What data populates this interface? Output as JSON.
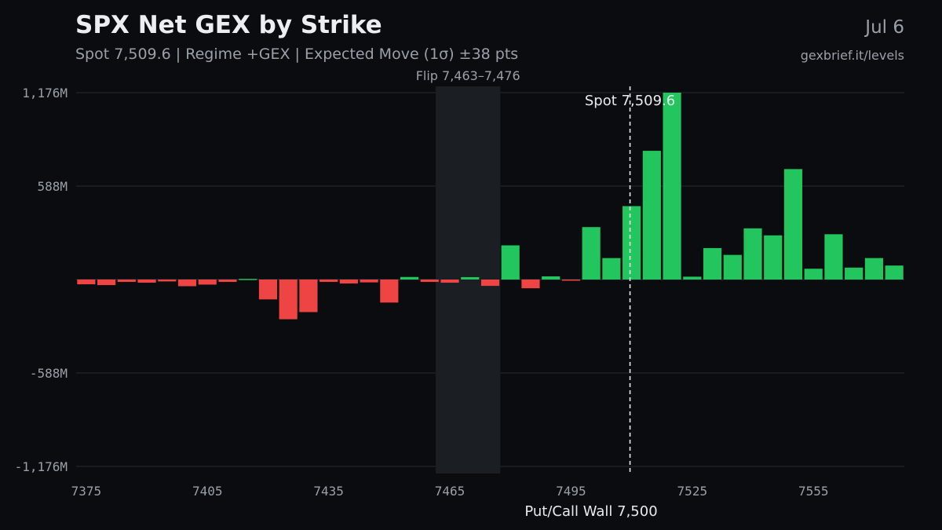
{
  "header": {
    "title": "SPX Net GEX by Strike",
    "subtitle": "Spot 7,509.6 | Regime +GEX | Expected Move (1σ) ±38 pts",
    "date": "Jul 6",
    "url": "gexbrief.it/levels"
  },
  "colors": {
    "background": "#0b0c0f",
    "positive": "#22c55e",
    "negative": "#ef4444",
    "grid": "#262a31",
    "flip_band": "#1b1f24",
    "text_muted": "#9aa0aa"
  },
  "chart_data": {
    "type": "bar",
    "title": "SPX Net GEX by Strike",
    "xlabel": "Put/Call Wall 7,500",
    "ylabel": "",
    "strike_step": 5,
    "x": [
      7375,
      7380,
      7385,
      7390,
      7395,
      7400,
      7405,
      7410,
      7415,
      7420,
      7425,
      7430,
      7435,
      7440,
      7445,
      7450,
      7455,
      7460,
      7465,
      7470,
      7475,
      7480,
      7485,
      7490,
      7495,
      7500,
      7505,
      7510,
      7515,
      7520,
      7525,
      7530,
      7535,
      7540,
      7545,
      7550,
      7555,
      7560,
      7565,
      7570,
      7575
    ],
    "values": [
      -30,
      -35,
      -15,
      -20,
      -12,
      -42,
      -32,
      -15,
      4,
      -125,
      -250,
      -205,
      -15,
      -25,
      -18,
      -145,
      16,
      -15,
      -20,
      15,
      -40,
      215,
      -55,
      20,
      -7,
      330,
      135,
      462,
      810,
      1176,
      18,
      198,
      155,
      322,
      278,
      695,
      68,
      285,
      75,
      135,
      88
    ],
    "xticks": [
      7375,
      7405,
      7435,
      7465,
      7495,
      7525,
      7555
    ],
    "xtick_labels": [
      "7375",
      "7405",
      "7435",
      "7465",
      "7495",
      "7525",
      "7555"
    ],
    "yticks": [
      1176,
      588,
      -588,
      -1176
    ],
    "ytick_labels": [
      "1,176M",
      "588M",
      "-588M",
      "-1,176M"
    ],
    "ylim": [
      -1176,
      1176
    ],
    "flip_zone": {
      "from": 7463,
      "to": 7476,
      "label": "Flip 7,463–7,476"
    },
    "spot": {
      "value": 7509.6,
      "label": "Spot 7,509.6"
    },
    "grid": true
  }
}
